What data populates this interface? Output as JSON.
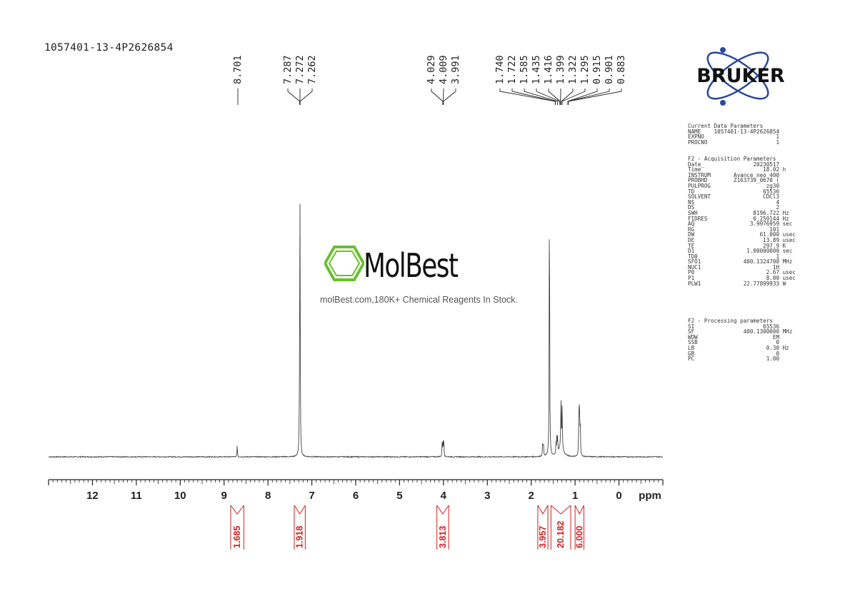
{
  "sample_id": "1057401-13-4P2626854",
  "watermark": {
    "brand": "MolBest",
    "tagline": "molBest.com,180K+ Chemical Reagents In Stock.",
    "accent_color": "#6abf2e"
  },
  "logo": {
    "text": "BRUKER",
    "orbit_color": "#2d4a9a",
    "text_color": "#111111"
  },
  "colors": {
    "spectrum": "#444444",
    "integral": "#cc2222",
    "axis": "#222222"
  },
  "params": {
    "current": {
      "header": "Current Data Parameters",
      "rows": [
        [
          "NAME",
          "1057401-13-4P2626854",
          ""
        ],
        [
          "EXPNO",
          "1",
          ""
        ],
        [
          "PROCNO",
          "1",
          ""
        ]
      ]
    },
    "acquisition": {
      "header": "F2 - Acquisition Parameters",
      "rows": [
        [
          "Date_",
          "20230517",
          ""
        ],
        [
          "Time",
          "18.02",
          "h"
        ],
        [
          "INSTRUM",
          "Avance neo 400",
          ""
        ],
        [
          "PROBHD",
          "Z163739_0670 (",
          ""
        ],
        [
          "PULPROG",
          "zg30",
          ""
        ],
        [
          "TD",
          "65536",
          ""
        ],
        [
          "SOLVENT",
          "CDCl3",
          ""
        ],
        [
          "NS",
          "4",
          ""
        ],
        [
          "DS",
          "2",
          ""
        ],
        [
          "SWH",
          "8196.722",
          "Hz"
        ],
        [
          "FIDRES",
          "0.250144",
          "Hz"
        ],
        [
          "AQ",
          "3.9976959",
          "sec"
        ],
        [
          "RG",
          "101",
          ""
        ],
        [
          "DW",
          "61.000",
          "usec"
        ],
        [
          "DE",
          "13.89",
          "usec"
        ],
        [
          "TE",
          "297.9",
          "K"
        ],
        [
          "D1",
          "1.00000000",
          "sec"
        ],
        [
          "TD0",
          "1",
          ""
        ],
        [
          "SFO1",
          "400.1324708",
          "MHz"
        ],
        [
          "NUC1",
          "1H",
          ""
        ],
        [
          "P0",
          "2.67",
          "usec"
        ],
        [
          "P1",
          "8.00",
          "usec"
        ],
        [
          "PLW1",
          "22.77899933",
          "W"
        ]
      ]
    },
    "processing": {
      "header": "F2 - Processing parameters",
      "rows": [
        [
          "SI",
          "65536",
          ""
        ],
        [
          "SF",
          "400.1300000",
          "MHz"
        ],
        [
          "WDW",
          "EM",
          ""
        ],
        [
          "SSB",
          "0",
          ""
        ],
        [
          "LB",
          "0.30",
          "Hz"
        ],
        [
          "GB",
          "0",
          ""
        ],
        [
          "PC",
          "1.00",
          ""
        ]
      ]
    }
  },
  "chart_data": {
    "type": "line",
    "title": "",
    "xlabel": "ppm",
    "ylabel": "",
    "xlim": [
      13.0,
      -1.0
    ],
    "x_reversed": true,
    "ticks_major": [
      12,
      11,
      10,
      9,
      8,
      7,
      6,
      5,
      4,
      3,
      2,
      1,
      0
    ],
    "tick_labels": [
      "12",
      "11",
      "10",
      "9",
      "8",
      "7",
      "6",
      "5",
      "4",
      "3",
      "2",
      "1",
      "0"
    ],
    "peaks": [
      {
        "ppm": 8.701,
        "intensity": 0.04
      },
      {
        "ppm": 7.287,
        "intensity": 0.06
      },
      {
        "ppm": 7.272,
        "intensity": 0.97
      },
      {
        "ppm": 7.262,
        "intensity": 0.07
      },
      {
        "ppm": 4.029,
        "intensity": 0.05
      },
      {
        "ppm": 4.009,
        "intensity": 0.06
      },
      {
        "ppm": 3.991,
        "intensity": 0.05
      },
      {
        "ppm": 1.74,
        "intensity": 0.05
      },
      {
        "ppm": 1.722,
        "intensity": 0.05
      },
      {
        "ppm": 1.585,
        "intensity": 1.0
      },
      {
        "ppm": 1.435,
        "intensity": 0.04
      },
      {
        "ppm": 1.416,
        "intensity": 0.06
      },
      {
        "ppm": 1.399,
        "intensity": 0.06
      },
      {
        "ppm": 1.322,
        "intensity": 0.17
      },
      {
        "ppm": 1.295,
        "intensity": 0.14
      },
      {
        "ppm": 0.915,
        "intensity": 0.14
      },
      {
        "ppm": 0.901,
        "intensity": 0.19
      },
      {
        "ppm": 0.883,
        "intensity": 0.12
      }
    ],
    "peak_label_groups": [
      {
        "labels": [
          "8.701"
        ],
        "center": 8.701
      },
      {
        "labels": [
          "7.287",
          "7.272",
          "7.262"
        ],
        "center": 7.272
      },
      {
        "labels": [
          "4.029",
          "4.009",
          "3.991"
        ],
        "center": 4.009
      },
      {
        "labels": [
          "1.740",
          "1.722",
          "1.585",
          "1.435",
          "1.416",
          "1.399",
          "1.322",
          "1.295",
          "0.915",
          "0.901",
          "0.883"
        ],
        "center": 1.3
      }
    ],
    "integrals": [
      {
        "value": "1.685",
        "from": 8.85,
        "to": 8.55
      },
      {
        "value": "1.918",
        "from": 7.4,
        "to": 7.15
      },
      {
        "value": "3.813",
        "from": 4.15,
        "to": 3.88
      },
      {
        "value": "3.957",
        "from": 1.85,
        "to": 1.62
      },
      {
        "value": "20.182",
        "from": 1.55,
        "to": 1.1
      },
      {
        "value": "6.000",
        "from": 1.0,
        "to": 0.8
      }
    ]
  }
}
